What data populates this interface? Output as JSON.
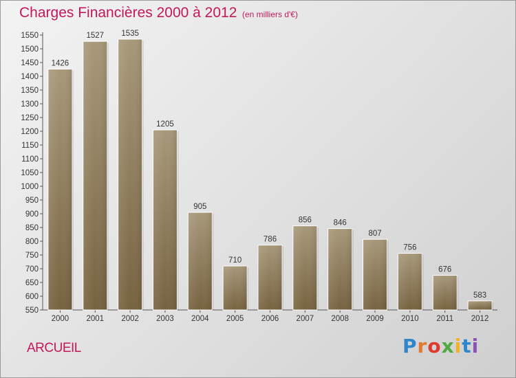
{
  "title": "Charges Financières 2000 à 2012",
  "unit_note": "(en milliers d'€)",
  "commune": "ARCUEIL",
  "brand": [
    "P",
    "r",
    "o",
    "x",
    "i",
    "t",
    "i"
  ],
  "colors": {
    "bar_top": "#a8987a",
    "bar_bottom": "#76623f",
    "title": "#c2185b"
  },
  "chart_data": {
    "type": "bar",
    "categories": [
      "2000",
      "2001",
      "2002",
      "2003",
      "2004",
      "2005",
      "2006",
      "2007",
      "2008",
      "2009",
      "2010",
      "2011",
      "2012"
    ],
    "values": [
      1426,
      1527,
      1535,
      1205,
      905,
      710,
      786,
      856,
      846,
      807,
      756,
      676,
      583
    ],
    "value_labels": [
      "1426",
      "1527",
      "1535",
      "1205",
      "905",
      "710",
      "786",
      "856",
      "846",
      "807",
      "756",
      "676",
      "583"
    ],
    "ylim": [
      550,
      1550
    ],
    "ytick_step": 50,
    "yticks": [
      "550",
      "600",
      "650",
      "700",
      "750",
      "800",
      "850",
      "900",
      "950",
      "1000",
      "1050",
      "1100",
      "1150",
      "1200",
      "1250",
      "1300",
      "1350",
      "1400",
      "1450",
      "1500",
      "1550"
    ],
    "grid": false,
    "legend": "none"
  }
}
